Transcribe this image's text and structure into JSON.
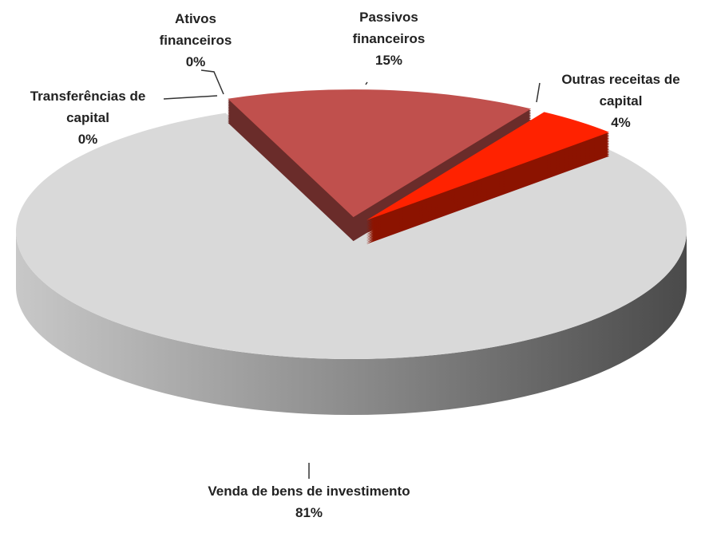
{
  "chart_data": {
    "type": "pie",
    "categories": [
      "Transferências de capital",
      "Ativos financeiros",
      "Passivos financeiros",
      "Outras receitas de capital",
      "Venda de bens de investimento"
    ],
    "values": [
      0,
      0,
      15,
      4,
      81
    ],
    "value_labels": [
      "0%",
      "0%",
      "15%",
      "4%",
      "81%"
    ],
    "colors": [
      "#6e6260",
      "#f0c8c0",
      "#c0504d",
      "#ff2200",
      "#d9d9d9"
    ]
  }
}
